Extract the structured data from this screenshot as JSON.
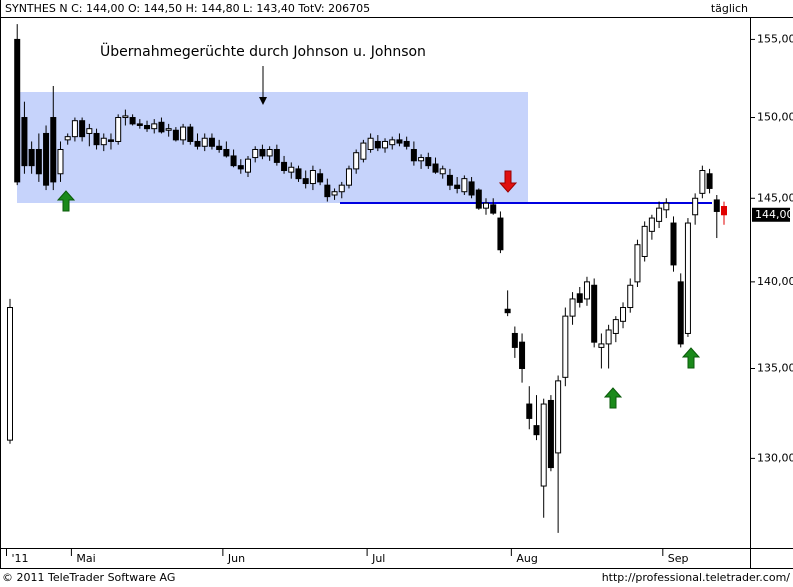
{
  "header": {
    "quote": "SYNTHES N C: 144,00 O: 144,50 H: 144,80 L: 143,40 TotV: 206705",
    "interval": "täglich"
  },
  "footer": {
    "copyright": "© 2011 TeleTrader Software AG",
    "url": "http://professional.teletrader.com/"
  },
  "chart_data": {
    "type": "candlestick",
    "annotation": "Übernahmegerüchte durch Johnson u. Johnson",
    "last_label": "144,00",
    "log_scale": true,
    "colors": {
      "up": "#ffffff",
      "down": "#000000",
      "edge": "#000000",
      "last": "#e00000",
      "label_bg": "#000000"
    },
    "ylim": [
      125.2,
      156.4
    ],
    "yticks": [
      {
        "value": 130,
        "label": "130,00"
      },
      {
        "value": 135,
        "label": "135,00"
      },
      {
        "value": 140,
        "label": "140,00"
      },
      {
        "value": 145,
        "label": "145,00"
      },
      {
        "value": 150,
        "label": "150,00"
      },
      {
        "value": 155,
        "label": "155,00"
      }
    ],
    "categories": [
      "'11",
      null,
      null,
      null,
      null,
      null,
      null,
      null,
      null,
      "Mai",
      null,
      null,
      null,
      null,
      null,
      null,
      null,
      null,
      null,
      null,
      null,
      null,
      null,
      null,
      null,
      null,
      null,
      null,
      null,
      null,
      "Jun",
      null,
      null,
      null,
      null,
      null,
      null,
      null,
      null,
      null,
      null,
      null,
      null,
      null,
      null,
      null,
      null,
      null,
      null,
      null,
      "Jul",
      null,
      null,
      null,
      null,
      null,
      null,
      null,
      null,
      null,
      null,
      null,
      null,
      null,
      null,
      null,
      null,
      null,
      null,
      null,
      "Aug",
      null,
      null,
      null,
      null,
      null,
      null,
      null,
      null,
      null,
      null,
      null,
      null,
      null,
      null,
      null,
      null,
      null,
      null,
      null,
      null,
      "Sep",
      null,
      null,
      null,
      null,
      null,
      null,
      null,
      null
    ],
    "open": [
      131,
      155,
      150,
      148,
      148,
      149,
      150,
      146.5,
      148.6,
      148.8,
      149.8,
      149,
      149,
      148.3,
      148.6,
      148.5,
      150,
      150,
      149.6,
      149.5,
      149.3,
      149.7,
      149.2,
      149.2,
      148.6,
      149.4,
      148.5,
      148.2,
      148.7,
      148.2,
      148,
      147.6,
      147,
      146.6,
      147.5,
      148,
      147.6,
      148,
      147.2,
      146.6,
      146.8,
      146.2,
      145.9,
      146.5,
      145.8,
      145.2,
      145.4,
      145.8,
      146.8,
      147.4,
      148,
      148.5,
      148.1,
      148.3,
      148.6,
      148.5,
      148,
      147.3,
      147.5,
      147.1,
      146.5,
      146.4,
      145.8,
      145.4,
      146,
      145.5,
      144.4,
      144.6,
      143.8,
      138.4,
      137,
      136.5,
      133,
      131.8,
      128.5,
      133.2,
      130.3,
      134.5,
      138,
      139.3,
      139,
      139.8,
      136.2,
      136.4,
      137,
      137.7,
      138.5,
      140,
      141.5,
      143,
      143.6,
      144.3,
      143.5,
      140,
      137,
      144,
      145.3,
      146.5,
      144.9,
      144.5
    ],
    "high": [
      139,
      156,
      151,
      148.5,
      149,
      149.5,
      152,
      148.5,
      149,
      150,
      150,
      149.6,
      149.3,
      149,
      149,
      150.2,
      150.5,
      150.2,
      149.9,
      149.8,
      149.9,
      150,
      149.6,
      149.4,
      149.6,
      149.6,
      149,
      149,
      149,
      148.6,
      148.5,
      148,
      147.4,
      147.6,
      148.2,
      148.3,
      148.2,
      148.3,
      147.6,
      147.2,
      147,
      146.7,
      147,
      146.8,
      146.2,
      145.6,
      146,
      147,
      148,
      148.6,
      149,
      148.9,
      148.7,
      148.8,
      149,
      148.8,
      148.5,
      147.7,
      147.8,
      147.5,
      147,
      146.8,
      146.3,
      146.4,
      146.3,
      145.6,
      145,
      145,
      144.2,
      139.5,
      137.4,
      137,
      134,
      133.5,
      133.3,
      133.5,
      134.6,
      138.5,
      139.4,
      139.7,
      140.3,
      140.2,
      137,
      137.5,
      138,
      138.8,
      140.2,
      142.5,
      143.6,
      144,
      144.8,
      145,
      143.9,
      140.5,
      143.8,
      145.3,
      147,
      146.8,
      145.2,
      144.8
    ],
    "low": [
      130.8,
      145.8,
      146.5,
      146.5,
      146,
      145.5,
      145.5,
      146,
      148.3,
      148.5,
      148.5,
      148.2,
      148,
      147.9,
      148,
      148.3,
      149.5,
      149.5,
      149.3,
      149.1,
      149,
      149,
      148.8,
      148.5,
      148.3,
      148.3,
      148,
      147.9,
      148,
      147.8,
      147.5,
      146.9,
      146.5,
      146.3,
      147.2,
      147.4,
      147.3,
      147,
      146.5,
      146.2,
      146,
      145.6,
      145.5,
      145.8,
      144.8,
      144.9,
      145,
      145.6,
      146.5,
      147.2,
      147.8,
      147.9,
      147.8,
      148,
      148.2,
      148,
      147,
      146.8,
      146.8,
      146.5,
      146.2,
      145.5,
      145.3,
      145.2,
      145,
      144.3,
      144,
      144,
      141.7,
      138,
      135.6,
      134.2,
      131.6,
      131,
      126.8,
      129.3,
      126,
      134,
      137.5,
      138.5,
      138.6,
      136.2,
      135,
      135,
      136.5,
      137.3,
      138.2,
      139.7,
      141.2,
      142.5,
      143.2,
      143.8,
      140.6,
      136.2,
      136.8,
      143.4,
      145,
      145.3,
      142.6,
      143.4
    ],
    "close": [
      138.5,
      146,
      147,
      147,
      146.5,
      145.8,
      146,
      148,
      148.8,
      149.8,
      148.8,
      149.3,
      148.3,
      148.7,
      148.5,
      150,
      150.1,
      149.6,
      149.5,
      149.3,
      149.6,
      149.1,
      149.3,
      148.6,
      149.4,
      148.5,
      148.2,
      148.7,
      148.2,
      148,
      147.6,
      147,
      146.8,
      147.4,
      148,
      147.6,
      148,
      147.2,
      146.7,
      146.9,
      146.2,
      145.9,
      146.7,
      146,
      145.1,
      145.4,
      145.8,
      146.8,
      147.8,
      148.4,
      148.7,
      148.1,
      148.5,
      148.6,
      148.4,
      148.2,
      147.3,
      147.5,
      147,
      146.6,
      146.8,
      145.8,
      145.6,
      146.2,
      145.2,
      144.4,
      144.7,
      144.1,
      141.9,
      138.2,
      136.2,
      135,
      132.2,
      131.3,
      133,
      129.5,
      134.3,
      138,
      139,
      138.8,
      140,
      136.5,
      136.4,
      137.2,
      137.8,
      138.5,
      139.8,
      142.2,
      143.3,
      143.8,
      144.4,
      144.7,
      141,
      136.4,
      143.5,
      145,
      146.7,
      145.6,
      144.2,
      144
    ]
  }
}
